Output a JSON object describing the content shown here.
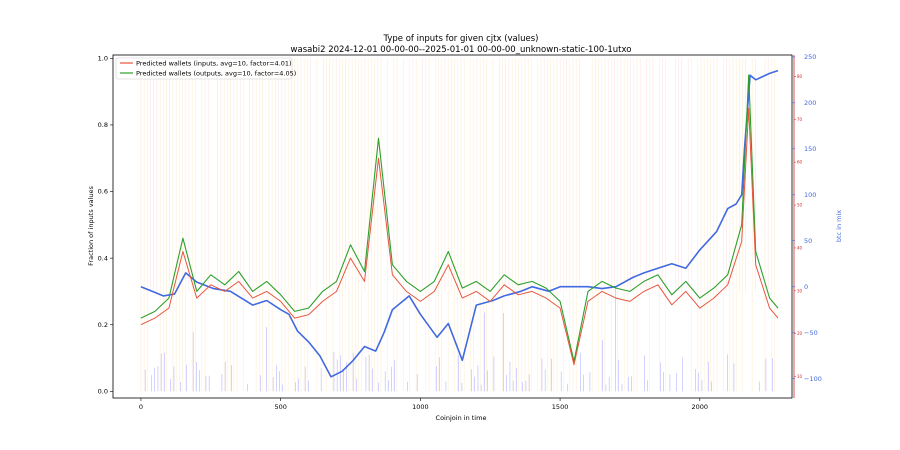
{
  "chart_data": {
    "type": "line",
    "title": "Type of inputs for given cjtx (values)",
    "subtitle": "wasabi2 2024-12-01 00-00-00--2025-01-01 00-00-00_unknown-static-100-1utxo",
    "xlabel": "Coinjoin in time",
    "ylabel": "Fraction of inputs values",
    "ylabel_right": "btc in mix",
    "xlim": [
      -100,
      2330
    ],
    "ylim": [
      -0.02,
      1.01
    ],
    "ylim_right": [
      -121,
      252
    ],
    "ylim_right_inner": [
      5,
      85
    ],
    "x_ticks": [
      0,
      500,
      1000,
      1500,
      2000
    ],
    "y_ticks": [
      0.0,
      0.2,
      0.4,
      0.6,
      0.8,
      1.0
    ],
    "y_ticks_right": [
      -100,
      -50,
      0,
      50,
      100,
      150,
      200,
      250
    ],
    "y_ticks_right_inner": [
      10,
      20,
      30,
      40,
      50,
      60,
      70,
      80
    ],
    "legend_position": "top-left",
    "colors": {
      "inputs": "#e8553f",
      "outputs": "#2ca02c",
      "btc": "#4169e1",
      "vlines_orange": "#ffa500",
      "vlines_red": "#ff7f7f",
      "vlines_blue": "#0000ff",
      "right_axis_inner": "#d62728"
    },
    "series": [
      {
        "name": "Predicted wallets (inputs, avg=10, factor=4.01)",
        "x": [
          0,
          50,
          100,
          150,
          200,
          250,
          300,
          350,
          400,
          450,
          500,
          550,
          600,
          650,
          700,
          750,
          800,
          850,
          900,
          950,
          1000,
          1050,
          1100,
          1150,
          1200,
          1250,
          1300,
          1350,
          1400,
          1450,
          1500,
          1550,
          1600,
          1650,
          1700,
          1750,
          1800,
          1850,
          1900,
          1950,
          2000,
          2050,
          2100,
          2150,
          2175,
          2200,
          2250,
          2280
        ],
        "values": [
          0.2,
          0.22,
          0.25,
          0.42,
          0.28,
          0.32,
          0.3,
          0.33,
          0.28,
          0.3,
          0.27,
          0.22,
          0.23,
          0.27,
          0.3,
          0.4,
          0.33,
          0.7,
          0.35,
          0.3,
          0.27,
          0.3,
          0.38,
          0.28,
          0.3,
          0.27,
          0.32,
          0.29,
          0.3,
          0.28,
          0.25,
          0.08,
          0.27,
          0.3,
          0.28,
          0.27,
          0.3,
          0.32,
          0.26,
          0.3,
          0.25,
          0.28,
          0.32,
          0.45,
          0.85,
          0.38,
          0.25,
          0.22
        ]
      },
      {
        "name": "Predicted wallets (outputs, avg=10, factor=4.05)",
        "x": [
          0,
          50,
          100,
          150,
          200,
          250,
          300,
          350,
          400,
          450,
          500,
          550,
          600,
          650,
          700,
          750,
          800,
          850,
          900,
          950,
          1000,
          1050,
          1100,
          1150,
          1200,
          1250,
          1300,
          1350,
          1400,
          1450,
          1500,
          1550,
          1600,
          1650,
          1700,
          1750,
          1800,
          1850,
          1900,
          1950,
          2000,
          2050,
          2100,
          2150,
          2175,
          2200,
          2250,
          2280
        ],
        "values": [
          0.22,
          0.24,
          0.28,
          0.46,
          0.3,
          0.35,
          0.32,
          0.36,
          0.3,
          0.33,
          0.29,
          0.24,
          0.25,
          0.3,
          0.33,
          0.44,
          0.36,
          0.76,
          0.38,
          0.33,
          0.3,
          0.33,
          0.42,
          0.31,
          0.33,
          0.3,
          0.35,
          0.32,
          0.33,
          0.31,
          0.27,
          0.09,
          0.3,
          0.33,
          0.31,
          0.3,
          0.33,
          0.35,
          0.29,
          0.33,
          0.28,
          0.31,
          0.35,
          0.5,
          0.95,
          0.42,
          0.28,
          0.25
        ]
      },
      {
        "axis": "right",
        "x": [
          0,
          40,
          80,
          120,
          160,
          200,
          260,
          320,
          400,
          450,
          500,
          530,
          560,
          600,
          640,
          680,
          720,
          760,
          800,
          840,
          870,
          900,
          960,
          1000,
          1060,
          1100,
          1150,
          1200,
          1260,
          1300,
          1360,
          1400,
          1460,
          1500,
          1540,
          1600,
          1650,
          1700,
          1760,
          1800,
          1850,
          1900,
          1950,
          2000,
          2030,
          2060,
          2100,
          2130,
          2150,
          2160,
          2180,
          2200,
          2250,
          2280
        ],
        "values": [
          0,
          -5,
          -10,
          -8,
          15,
          5,
          -2,
          -5,
          -20,
          -15,
          -25,
          -30,
          -48,
          -60,
          -75,
          -98,
          -92,
          -80,
          -65,
          -70,
          -50,
          -25,
          -10,
          -30,
          -55,
          -40,
          -80,
          -20,
          -15,
          -10,
          -5,
          0,
          -5,
          0,
          0,
          0,
          -2,
          0,
          10,
          15,
          20,
          25,
          20,
          40,
          50,
          60,
          85,
          90,
          100,
          150,
          230,
          225,
          232,
          235
        ]
      }
    ]
  }
}
